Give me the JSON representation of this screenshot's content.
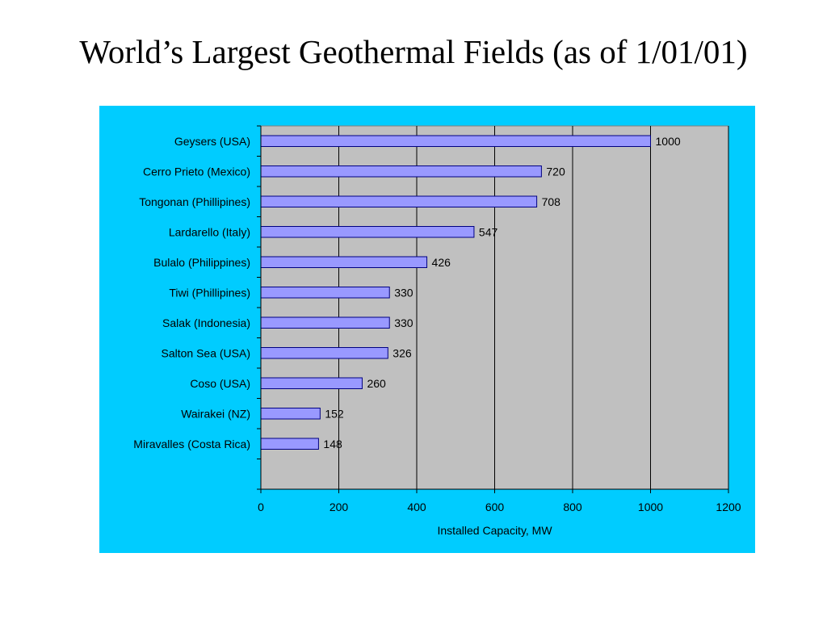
{
  "page": {
    "title": "World’s Largest Geothermal Fields (as of 1/01/01)"
  },
  "colors": {
    "panel_background": "#00CCFF",
    "plot_background": "#C0C0C0",
    "bar_fill": "#9999FF",
    "bar_stroke": "#000080",
    "gridline": "#000000"
  },
  "chart_data": {
    "type": "bar",
    "orientation": "horizontal",
    "title": "",
    "xlabel": "Installed Capacity, MW",
    "ylabel": "",
    "xlim": [
      0,
      1200
    ],
    "xticks": [
      0,
      200,
      400,
      600,
      800,
      1000,
      1200
    ],
    "grid": "vertical major gridlines",
    "legend": "none",
    "categories": [
      "Geysers (USA)",
      "Cerro Prieto (Mexico)",
      "Tongonan (Phillipines)",
      "Lardarello (Italy)",
      "Bulalo (Philippines)",
      "Tiwi (Phillipines)",
      "Salak (Indonesia)",
      "Salton Sea (USA)",
      "Coso (USA)",
      "Wairakei (NZ)",
      "Miravalles (Costa Rica)"
    ],
    "values": [
      1000,
      720,
      708,
      547,
      426,
      330,
      330,
      326,
      260,
      152,
      148
    ]
  }
}
